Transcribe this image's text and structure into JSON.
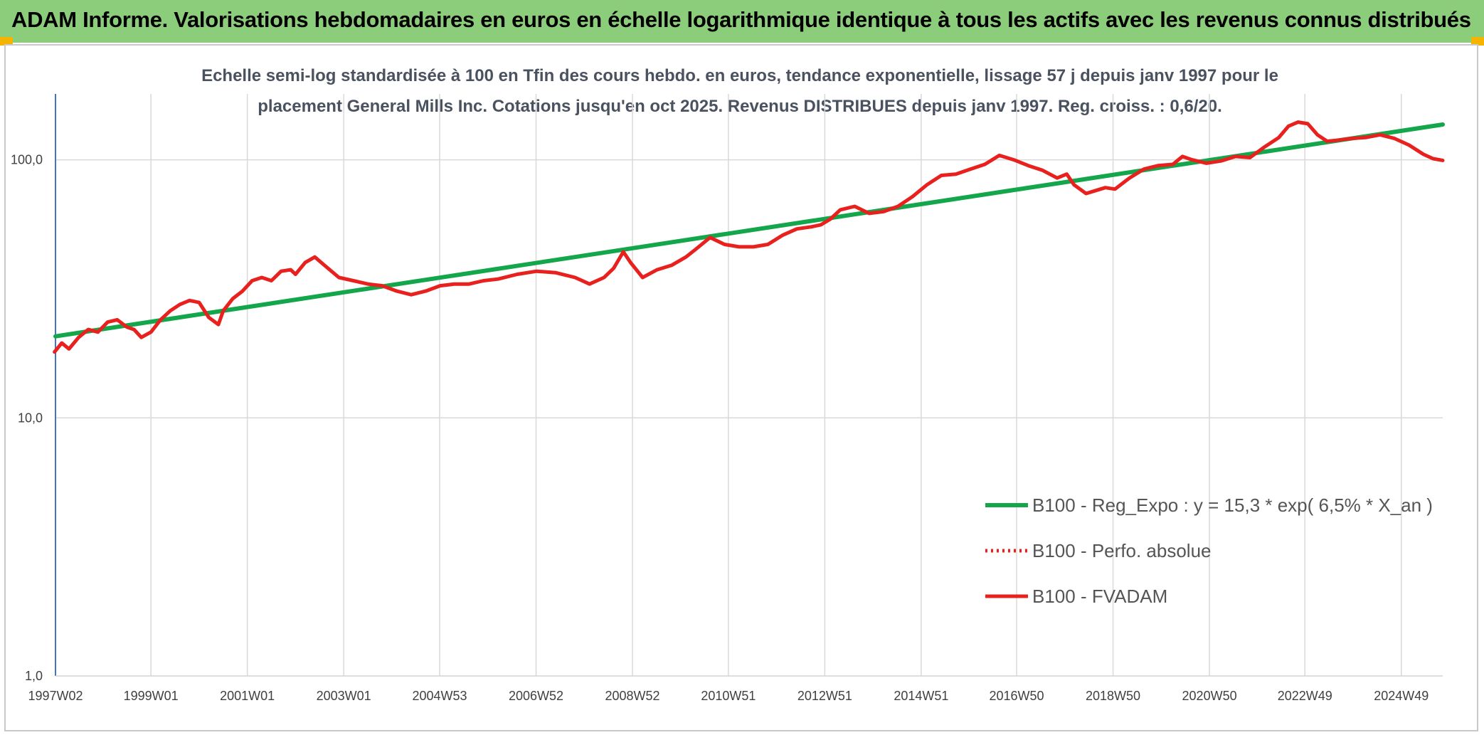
{
  "header": {
    "title": "ADAM Informe. Valorisations hebdomadaires en euros en échelle logarithmique identique à tous les actifs avec les revenus connus distribués"
  },
  "chart_data": {
    "type": "line",
    "title": "",
    "subtitle_lines": [
      "Echelle semi-log standardisée à 100 en Tfin des cours hebdo. en euros, tendance exponentielle, lissage 57 j depuis janv 1997 pour le",
      "placement General Mills Inc. Cotations jusqu'en oct 2025. Revenus DISTRIBUES depuis janv 1997. Reg. croiss. : 0,6/20."
    ],
    "y_scale": "log",
    "ylim": [
      1,
      180
    ],
    "y_ticks": [
      1,
      10,
      100
    ],
    "y_tick_labels": [
      "1,0",
      "10,0",
      "100,0"
    ],
    "xlim": [
      1997.02,
      2025.8
    ],
    "x_ticks": [
      1997.02,
      1999.0,
      2001.0,
      2003.0,
      2004.99,
      2006.99,
      2008.99,
      2010.98,
      2012.98,
      2014.98,
      2016.96,
      2018.96,
      2020.96,
      2022.94,
      2024.94
    ],
    "x_tick_labels": [
      "1997W02",
      "1999W01",
      "2001W01",
      "2003W01",
      "2004W53",
      "2006W52",
      "2008W52",
      "2010W51",
      "2012W51",
      "2014W51",
      "2016W50",
      "2018W50",
      "2020W50",
      "2022W49",
      "2024W49"
    ],
    "grid": "vertical-and-horizontal",
    "legend_position": "bottom-right",
    "series": [
      {
        "name": "B100 - Reg_Expo : y = 15,3 * exp( 6,5% *  X_an )",
        "color": "#14a64a",
        "style": "solid",
        "x": [
          1997.02,
          2025.8
        ],
        "y": [
          20.7,
          137
        ]
      },
      {
        "name": "B100 - Perfo. absolue",
        "color": "#e8211e",
        "style": "dotted",
        "x": [],
        "y": []
      },
      {
        "name": "B100 - FVADAM",
        "color": "#e8211e",
        "style": "solid",
        "x": [
          1997.0,
          1997.15,
          1997.3,
          1997.5,
          1997.7,
          1997.9,
          1998.1,
          1998.3,
          1998.5,
          1998.65,
          1998.8,
          1999.0,
          1999.2,
          1999.4,
          1999.6,
          1999.8,
          2000.0,
          2000.2,
          2000.4,
          2000.5,
          2000.7,
          2000.9,
          2001.1,
          2001.3,
          2001.5,
          2001.7,
          2001.9,
          2002.0,
          2002.2,
          2002.4,
          2002.6,
          2002.9,
          2003.2,
          2003.5,
          2003.8,
          2004.1,
          2004.4,
          2004.7,
          2005.0,
          2005.3,
          2005.6,
          2005.9,
          2006.2,
          2006.6,
          2007.0,
          2007.4,
          2007.8,
          2008.1,
          2008.4,
          2008.6,
          2008.8,
          2008.95,
          2009.2,
          2009.5,
          2009.8,
          2010.1,
          2010.3,
          2010.6,
          2010.9,
          2011.2,
          2011.5,
          2011.8,
          2012.1,
          2012.4,
          2012.7,
          2012.9,
          2013.1,
          2013.3,
          2013.6,
          2013.9,
          2014.2,
          2014.5,
          2014.8,
          2015.1,
          2015.4,
          2015.7,
          2016.0,
          2016.3,
          2016.6,
          2016.9,
          2017.2,
          2017.5,
          2017.8,
          2018.0,
          2018.15,
          2018.4,
          2018.6,
          2018.8,
          2019.0,
          2019.3,
          2019.6,
          2019.9,
          2020.2,
          2020.4,
          2020.6,
          2020.9,
          2021.2,
          2021.5,
          2021.8,
          2022.1,
          2022.4,
          2022.6,
          2022.8,
          2023.0,
          2023.2,
          2023.4,
          2023.6,
          2023.9,
          2024.2,
          2024.5,
          2024.8,
          2025.1,
          2025.4,
          2025.6,
          2025.8
        ],
        "y": [
          18.0,
          19.5,
          18.5,
          20.5,
          22.0,
          21.5,
          23.5,
          24.0,
          22.5,
          22.0,
          20.5,
          21.5,
          24.0,
          26.0,
          27.5,
          28.5,
          28.0,
          24.5,
          23.0,
          26.0,
          29.0,
          31.0,
          34.0,
          35.0,
          34.0,
          37.0,
          37.5,
          36.0,
          40.0,
          42.0,
          39.0,
          35.0,
          34.0,
          33.0,
          32.5,
          31.0,
          30.0,
          31.0,
          32.5,
          33.0,
          33.0,
          34.0,
          34.5,
          36.0,
          37.0,
          36.5,
          35.0,
          33.0,
          35.0,
          38.0,
          44.0,
          40.0,
          35.0,
          37.5,
          39.0,
          42.0,
          45.0,
          50.0,
          47.0,
          46.0,
          46.0,
          47.0,
          51.0,
          54.0,
          55.0,
          56.0,
          59.0,
          64.0,
          66.0,
          62.0,
          63.0,
          66.0,
          72.0,
          80.0,
          87.0,
          88.0,
          92.0,
          96.0,
          104.0,
          100.0,
          95.0,
          91.0,
          85.0,
          88.0,
          80.0,
          74.0,
          76.0,
          78.0,
          77.0,
          85.0,
          92.0,
          95.0,
          96.0,
          103.0,
          100.0,
          97.0,
          99.0,
          103.0,
          102.0,
          112.0,
          122.0,
          135.0,
          140.0,
          138.0,
          125.0,
          118.0,
          119.0,
          121.0,
          122.0,
          125.0,
          121.0,
          114.0,
          105.0,
          101.0,
          99.5
        ]
      }
    ]
  }
}
